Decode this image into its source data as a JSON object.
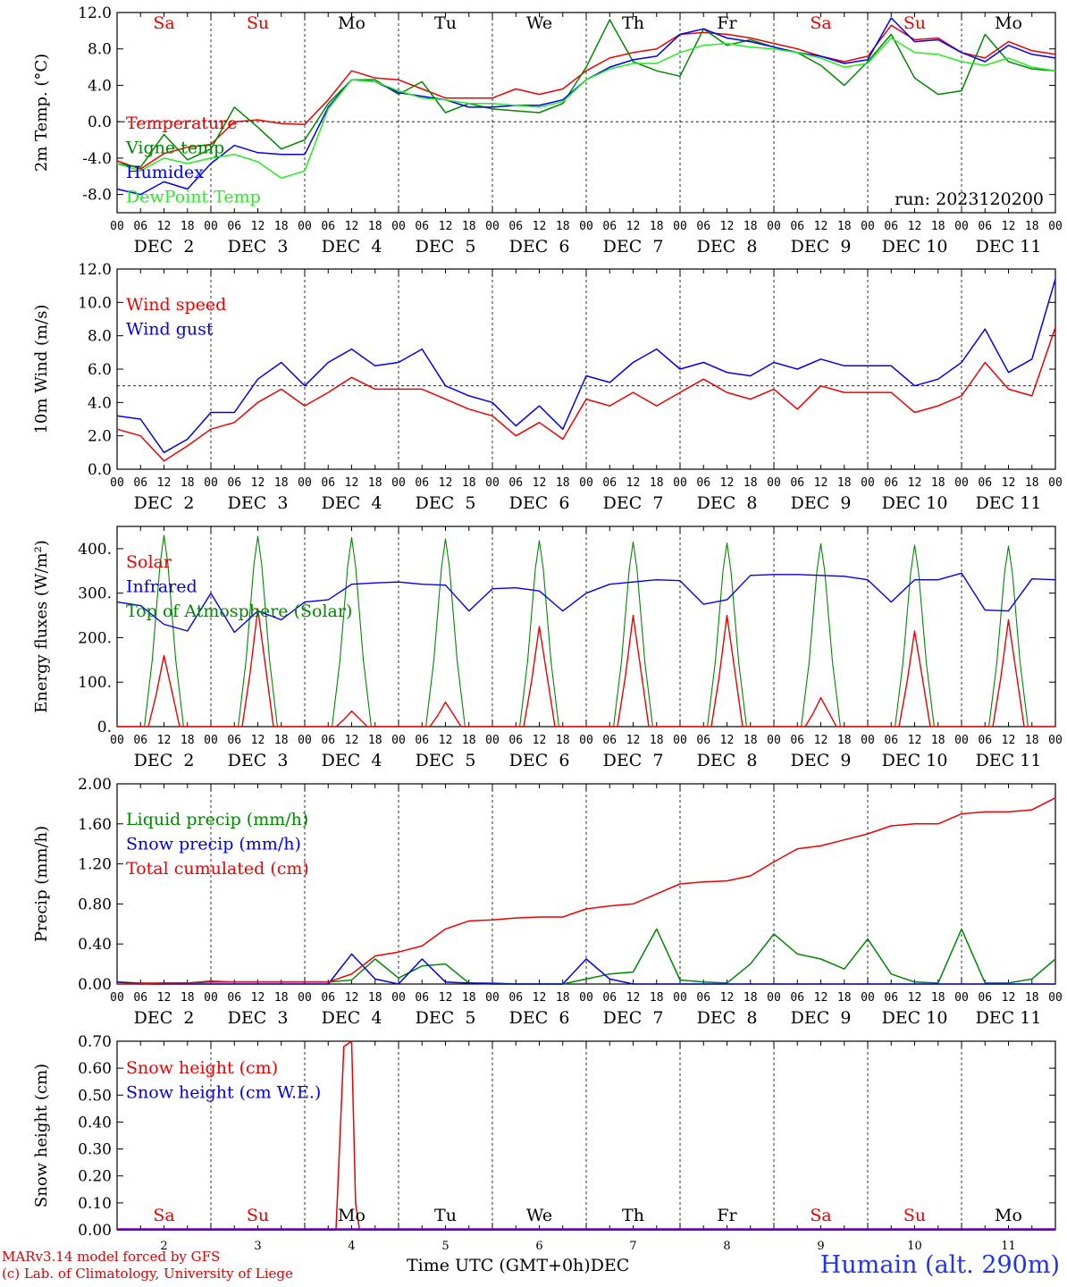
{
  "x_axis": {
    "hour_ticks": [
      "00",
      "06",
      "12",
      "18"
    ],
    "end_tick": "00",
    "dates": [
      "DEC  2",
      "DEC  3",
      "DEC  4",
      "DEC  5",
      "DEC  6",
      "DEC  7",
      "DEC  8",
      "DEC  9",
      "DEC 10",
      "DEC 11"
    ],
    "day_names": [
      "Sa",
      "Su",
      "Mo",
      "Tu",
      "We",
      "Th",
      "Fr",
      "Sa",
      "Su",
      "Mo"
    ],
    "weekend": [
      true,
      true,
      false,
      false,
      false,
      false,
      false,
      true,
      true,
      false
    ],
    "bottom_day_numbers": [
      "2",
      "3",
      "4",
      "5",
      "6",
      "7",
      "8",
      "9",
      "10",
      "11"
    ]
  },
  "colors": {
    "red": "#ee0000",
    "green": "#008800",
    "blue": "#0000ee",
    "lightgreen": "#22ee22",
    "weekend": "#ee0000"
  },
  "run_label": "run: 2023120200",
  "footer": {
    "model": "MARv3.14 model forced by GFS",
    "credit": "(c) Lab. of Climatology, University of Liege",
    "xlabel": "Time UTC (GMT+0h)",
    "month": "DEC",
    "station": "Humain (alt. 290m)"
  },
  "chart_data": [
    {
      "type": "line",
      "ylabel": "2m Temp. (°C)",
      "ylim": [
        -10,
        12
      ],
      "yticks": [
        "-8.0",
        "-4.0",
        "0.0",
        "4.0",
        "8.0",
        "12.0"
      ],
      "ytick_values": [
        -8,
        -4,
        0,
        4,
        8,
        12
      ],
      "ref_line": 0,
      "show_days": true,
      "x": [
        0,
        6,
        12,
        18,
        24,
        30,
        36,
        42,
        48,
        54,
        60,
        66,
        72,
        78,
        84,
        90,
        96,
        102,
        108,
        114,
        120,
        126,
        132,
        138,
        144,
        150,
        156,
        162,
        168,
        174,
        180,
        186,
        192,
        198,
        204,
        210,
        216,
        222,
        228,
        234,
        240
      ],
      "series": [
        {
          "name": "Temperature",
          "color": "red",
          "values": [
            -4.3,
            -5.2,
            -3.5,
            -2.8,
            -2.5,
            0.0,
            0.2,
            -0.2,
            -0.3,
            2.4,
            5.6,
            4.8,
            4.6,
            3.6,
            2.6,
            2.6,
            2.6,
            3.6,
            3.0,
            3.6,
            5.6,
            7.0,
            7.6,
            8.0,
            9.6,
            9.8,
            9.6,
            9.2,
            8.6,
            8.0,
            7.2,
            6.6,
            7.2,
            10.6,
            9.0,
            9.2,
            7.6,
            7.0,
            8.8,
            7.8,
            7.4
          ]
        },
        {
          "name": "Vigne temp",
          "color": "green",
          "values": [
            -4.6,
            -5.0,
            -1.4,
            -4.2,
            -3.0,
            1.6,
            -0.6,
            -3.0,
            -2.0,
            2.0,
            4.6,
            4.6,
            3.0,
            4.4,
            1.0,
            2.0,
            1.4,
            1.2,
            1.0,
            2.0,
            6.0,
            11.2,
            6.6,
            5.6,
            5.0,
            10.2,
            8.4,
            9.0,
            8.2,
            7.6,
            6.2,
            4.0,
            6.6,
            9.6,
            4.8,
            3.0,
            3.4,
            9.6,
            6.6,
            5.8,
            5.6
          ]
        },
        {
          "name": "Humidex",
          "color": "blue",
          "values": [
            -7.4,
            -8.0,
            -6.6,
            -7.4,
            -4.6,
            -2.6,
            -3.4,
            -3.6,
            -3.6,
            1.6,
            4.6,
            4.4,
            3.2,
            2.8,
            2.4,
            1.6,
            1.6,
            1.8,
            1.8,
            2.4,
            4.6,
            6.0,
            6.8,
            7.2,
            9.6,
            10.2,
            9.2,
            8.8,
            8.2,
            7.6,
            7.2,
            6.4,
            6.8,
            11.4,
            8.8,
            9.0,
            7.6,
            6.6,
            8.4,
            7.4,
            7.0
          ]
        },
        {
          "name": "DewPoint Temp",
          "color": "lightgreen",
          "values": [
            -4.6,
            -5.4,
            -4.0,
            -4.6,
            -4.0,
            -3.6,
            -4.4,
            -6.2,
            -5.4,
            1.4,
            4.6,
            4.4,
            3.4,
            2.6,
            2.4,
            2.0,
            2.0,
            1.8,
            1.6,
            2.2,
            4.6,
            5.8,
            6.4,
            6.4,
            7.6,
            8.4,
            8.6,
            8.2,
            8.0,
            7.6,
            7.0,
            6.0,
            6.4,
            9.2,
            7.6,
            7.4,
            6.6,
            6.2,
            7.0,
            6.0,
            5.6
          ]
        }
      ]
    },
    {
      "type": "line",
      "ylabel": "10m Wind (m/s)",
      "ylim": [
        0,
        12
      ],
      "yticks": [
        "0.0",
        "2.0",
        "4.0",
        "6.0",
        "8.0",
        "10.0",
        "12.0"
      ],
      "ytick_values": [
        0,
        2,
        4,
        6,
        8,
        10,
        12
      ],
      "ref_line": 5,
      "show_days": false,
      "x": [
        0,
        6,
        12,
        18,
        24,
        30,
        36,
        42,
        48,
        54,
        60,
        66,
        72,
        78,
        84,
        90,
        96,
        102,
        108,
        114,
        120,
        126,
        132,
        138,
        144,
        150,
        156,
        162,
        168,
        174,
        180,
        186,
        192,
        198,
        204,
        210,
        216,
        222,
        228,
        234,
        240
      ],
      "series": [
        {
          "name": "Wind speed",
          "color": "red",
          "values": [
            2.4,
            2.0,
            0.5,
            1.4,
            2.4,
            2.8,
            4.0,
            4.8,
            3.8,
            4.6,
            5.5,
            4.8,
            4.8,
            4.8,
            4.2,
            3.6,
            3.2,
            2.0,
            2.8,
            1.8,
            4.2,
            3.8,
            4.6,
            3.8,
            4.6,
            5.4,
            4.6,
            4.2,
            4.8,
            3.6,
            5.0,
            4.6,
            4.6,
            4.6,
            3.4,
            3.8,
            4.4,
            6.4,
            4.8,
            4.4,
            8.5
          ]
        },
        {
          "name": "Wind gust",
          "color": "blue",
          "values": [
            3.2,
            3.0,
            1.0,
            1.8,
            3.4,
            3.4,
            5.4,
            6.4,
            5.0,
            6.4,
            7.2,
            6.2,
            6.4,
            7.2,
            5.0,
            4.4,
            4.0,
            2.6,
            3.8,
            2.4,
            5.6,
            5.2,
            6.4,
            7.2,
            6.0,
            6.4,
            5.8,
            5.6,
            6.4,
            6.0,
            6.6,
            6.2,
            6.2,
            6.2,
            5.0,
            5.4,
            6.4,
            8.4,
            5.8,
            6.6,
            11.4
          ]
        }
      ]
    },
    {
      "type": "line",
      "ylabel": "Energy fluxes (W/m²)",
      "ylim": [
        0,
        450
      ],
      "yticks": [
        "0.",
        "100.",
        "200.",
        "300.",
        "400."
      ],
      "ytick_values": [
        0,
        100,
        200,
        300,
        400
      ],
      "ref_line": null,
      "show_days": false,
      "solar_peaks": [
        160,
        265,
        35,
        55,
        225,
        250,
        250,
        65,
        215,
        240
      ],
      "toa_peaks": [
        430,
        428,
        425,
        422,
        418,
        415,
        413,
        411,
        408,
        406
      ],
      "series": [
        {
          "name": "Solar",
          "color": "red"
        },
        {
          "name": "Infrared",
          "color": "blue",
          "x": [
            0,
            6,
            12,
            18,
            24,
            30,
            36,
            42,
            48,
            54,
            60,
            66,
            72,
            78,
            84,
            90,
            96,
            102,
            108,
            114,
            120,
            126,
            132,
            138,
            144,
            150,
            156,
            162,
            168,
            174,
            180,
            186,
            192,
            198,
            204,
            210,
            216,
            222,
            228,
            234,
            240
          ],
          "values": [
            280,
            272,
            230,
            215,
            300,
            212,
            260,
            240,
            280,
            285,
            320,
            323,
            325,
            320,
            318,
            260,
            310,
            312,
            305,
            260,
            300,
            320,
            325,
            330,
            328,
            275,
            285,
            340,
            342,
            342,
            340,
            338,
            330,
            280,
            330,
            330,
            345,
            262,
            260,
            332,
            330
          ]
        },
        {
          "name": "Top of Atmosphere (Solar)",
          "color": "green"
        }
      ]
    },
    {
      "type": "line",
      "ylabel": "Precip (mm/h)",
      "ylim": [
        0,
        2
      ],
      "yticks": [
        "0.00",
        "0.40",
        "0.80",
        "1.20",
        "1.60",
        "2.00"
      ],
      "ytick_values": [
        0,
        0.4,
        0.8,
        1.2,
        1.6,
        2.0
      ],
      "ref_line": null,
      "show_days": false,
      "x": [
        0,
        6,
        12,
        18,
        24,
        30,
        36,
        42,
        48,
        54,
        60,
        66,
        72,
        78,
        84,
        90,
        96,
        102,
        108,
        114,
        120,
        126,
        132,
        138,
        144,
        150,
        156,
        162,
        168,
        174,
        180,
        186,
        192,
        198,
        204,
        210,
        216,
        222,
        228,
        234,
        240
      ],
      "series": [
        {
          "name": "Liquid precip (mm/h)",
          "color": "green",
          "values": [
            0.02,
            0.01,
            0.01,
            0.01,
            0.03,
            0.02,
            0.02,
            0.02,
            0.02,
            0.02,
            0.04,
            0.25,
            0.06,
            0.18,
            0.2,
            0.01,
            0.01,
            0.0,
            0.0,
            0.0,
            0.05,
            0.1,
            0.12,
            0.55,
            0.04,
            0.02,
            0.01,
            0.2,
            0.5,
            0.3,
            0.25,
            0.15,
            0.45,
            0.1,
            0.02,
            0.01,
            0.55,
            0.01,
            0.01,
            0.05,
            0.25
          ]
        },
        {
          "name": "Snow precip (mm/h)",
          "color": "blue",
          "values": [
            0.02,
            0.0,
            0.0,
            0.0,
            0.0,
            0.0,
            0.0,
            0.0,
            0.0,
            0.0,
            0.3,
            0.05,
            0.0,
            0.25,
            0.02,
            0.01,
            0.0,
            0.0,
            0.0,
            0.0,
            0.25,
            0.05,
            0.0,
            0.0,
            0.0,
            0.0,
            0.0,
            0.0,
            0.0,
            0.0,
            0.0,
            0.0,
            0.0,
            0.0,
            0.0,
            0.0,
            0.0,
            0.0,
            0.0,
            0.0,
            0.0
          ]
        },
        {
          "name": "Total cumulated (cm)",
          "color": "red",
          "values": [
            0.0,
            0.0,
            0.01,
            0.01,
            0.02,
            0.02,
            0.02,
            0.02,
            0.02,
            0.02,
            0.1,
            0.28,
            0.32,
            0.38,
            0.55,
            0.63,
            0.64,
            0.66,
            0.67,
            0.67,
            0.75,
            0.78,
            0.8,
            0.9,
            1.0,
            1.02,
            1.03,
            1.08,
            1.22,
            1.35,
            1.38,
            1.44,
            1.5,
            1.58,
            1.6,
            1.6,
            1.7,
            1.72,
            1.72,
            1.74,
            1.86
          ]
        }
      ]
    },
    {
      "type": "line",
      "ylabel": "Snow height (cm)",
      "ylim": [
        0,
        0.7
      ],
      "yticks": [
        "0.00",
        "0.10",
        "0.20",
        "0.30",
        "0.40",
        "0.50",
        "0.60",
        "0.70"
      ],
      "ytick_values": [
        0,
        0.1,
        0.2,
        0.3,
        0.4,
        0.5,
        0.6,
        0.7
      ],
      "ref_line": null,
      "show_days": false,
      "x": [
        0,
        56,
        58,
        60,
        61,
        62,
        240
      ],
      "series": [
        {
          "name": "Snow height (cm)",
          "color": "red",
          "values": [
            0,
            0,
            0.68,
            0.7,
            0.1,
            0,
            0
          ]
        },
        {
          "name": "Snow height (cm W.E.)",
          "color": "blue",
          "values": [
            0,
            0,
            0,
            0,
            0,
            0,
            0
          ]
        }
      ]
    }
  ]
}
